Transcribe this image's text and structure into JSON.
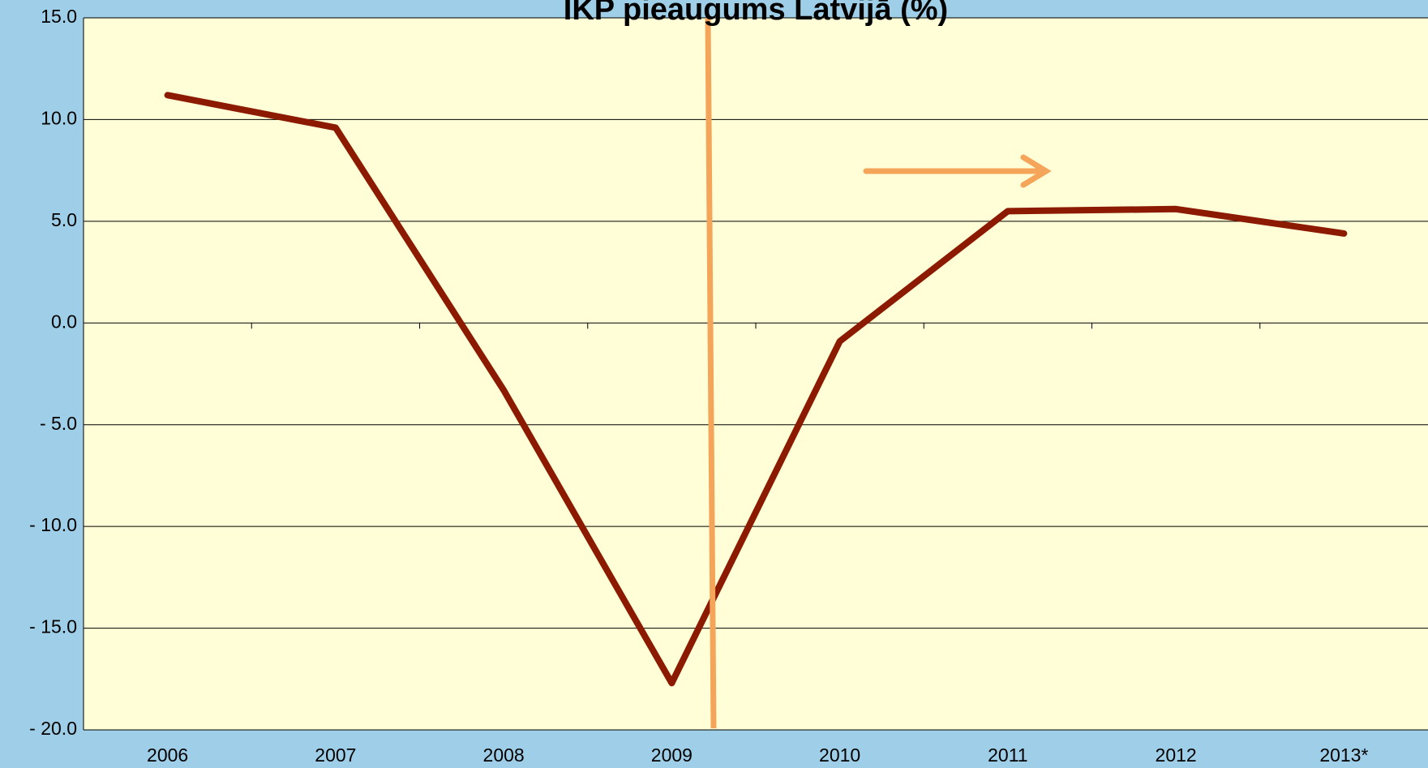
{
  "chart_data": {
    "type": "line",
    "title": "IKP pieaugums Latvijā (%)",
    "categories": [
      "2006",
      "2007",
      "2008",
      "2009",
      "2010",
      "2011",
      "2012",
      "2013*"
    ],
    "series": [
      {
        "name": "IKP pieaugums",
        "color": "#8b1a00",
        "values": [
          11.2,
          9.6,
          -3.3,
          -17.7,
          -0.9,
          5.5,
          5.6,
          4.4
        ]
      }
    ],
    "ylim": [
      -20,
      15
    ],
    "yticks": [
      {
        "value": -20,
        "label": "- 20.0"
      },
      {
        "value": -15,
        "label": "- 15.0"
      },
      {
        "value": -10,
        "label": "- 10.0"
      },
      {
        "value": -5,
        "label": "- 5.0"
      },
      {
        "value": 0,
        "label": "0.0"
      },
      {
        "value": 5,
        "label": "5.0"
      },
      {
        "value": 10,
        "label": "10.0"
      },
      {
        "value": 15,
        "label": "15.0"
      }
    ],
    "grid": true
  }
}
